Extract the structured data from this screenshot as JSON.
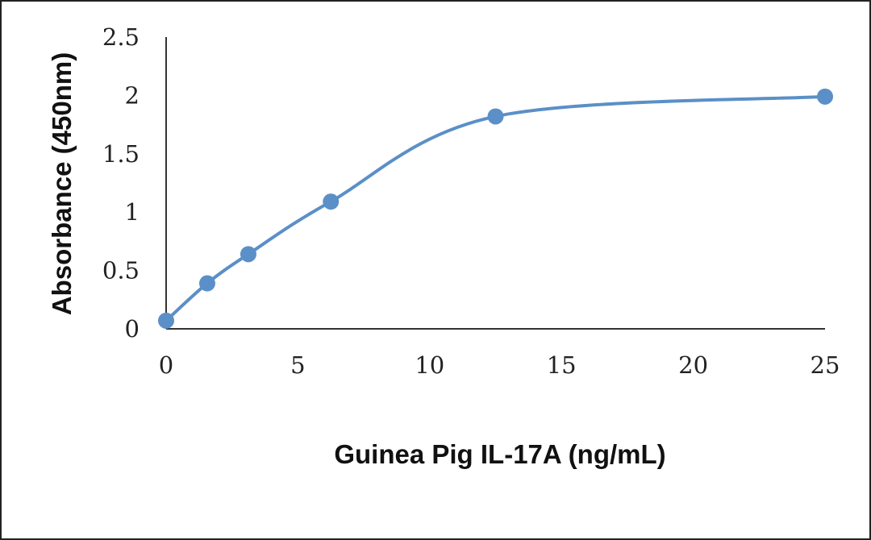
{
  "chart_data": {
    "type": "scatter",
    "title": "",
    "xlabel": "Guinea Pig IL-17A (ng/mL)",
    "ylabel": "Absorbance (450nm)",
    "xlim": [
      0,
      25
    ],
    "ylim": [
      0,
      2.5
    ],
    "xticks": [
      "0",
      "5",
      "10",
      "15",
      "20",
      "25"
    ],
    "yticks": [
      "0",
      "0.5",
      "1",
      "1.5",
      "2",
      "2.5"
    ],
    "grid": false,
    "legend": "none",
    "smooth_line": true,
    "series": [
      {
        "color": "#5b8fc7",
        "x": [
          0,
          1.56,
          3.12,
          6.25,
          12.5,
          25
        ],
        "y": [
          0.07,
          0.39,
          0.64,
          1.09,
          1.82,
          1.99
        ]
      }
    ]
  }
}
